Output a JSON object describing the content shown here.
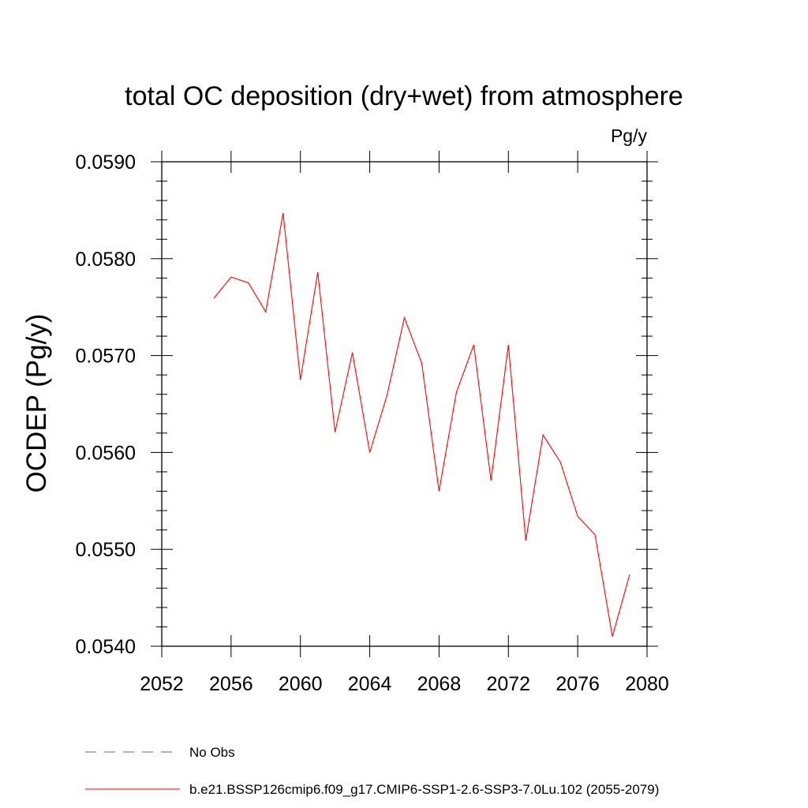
{
  "chart_data": {
    "type": "line",
    "title": "total OC deposition (dry+wet) from atmosphere",
    "units": "Pg/y",
    "ylabel": "OCDEP  (Pg/y)",
    "xlabel": "",
    "xlim": [
      2052,
      2080
    ],
    "ylim": [
      0.054,
      0.059
    ],
    "x_ticks": [
      2052,
      2056,
      2060,
      2064,
      2068,
      2072,
      2076,
      2080
    ],
    "x_tick_labels": [
      "2052",
      "2056",
      "2060",
      "2064",
      "2068",
      "2072",
      "2076",
      "2080"
    ],
    "y_ticks": [
      0.054,
      0.055,
      0.056,
      0.057,
      0.058,
      0.059
    ],
    "y_tick_labels": [
      "0.0540",
      "0.0550",
      "0.0560",
      "0.0570",
      "0.0580",
      "0.0590"
    ],
    "grid": false,
    "legend_position": "bottom",
    "series": [
      {
        "name": "b.e21.BSSP126cmip6.f09_g17.CMIP6-SSP1-2.6-SSP3-7.0Lu.102 (2055-2079)",
        "color": "#ff0000",
        "style": "solid",
        "x": [
          2055,
          2056,
          2057,
          2058,
          2059,
          2060,
          2061,
          2062,
          2063,
          2064,
          2065,
          2066,
          2067,
          2068,
          2069,
          2070,
          2071,
          2072,
          2073,
          2074,
          2075,
          2076,
          2077,
          2078,
          2079
        ],
        "values": [
          0.05759,
          0.05781,
          0.05775,
          0.05745,
          0.05847,
          0.05675,
          0.05786,
          0.05621,
          0.05703,
          0.056,
          0.05659,
          0.05739,
          0.05692,
          0.0556,
          0.05662,
          0.05711,
          0.05571,
          0.05711,
          0.05509,
          0.05618,
          0.0559,
          0.05534,
          0.05515,
          0.0541,
          0.05474
        ]
      }
    ],
    "legend": [
      {
        "label": "No Obs",
        "color": "#6a5acd",
        "style": "dashed"
      },
      {
        "label": "b.e21.BSSP126cmip6.f09_g17.CMIP6-SSP1-2.6-SSP3-7.0Lu.102 (2055-2079)",
        "color": "#ff0000",
        "style": "solid"
      }
    ]
  }
}
